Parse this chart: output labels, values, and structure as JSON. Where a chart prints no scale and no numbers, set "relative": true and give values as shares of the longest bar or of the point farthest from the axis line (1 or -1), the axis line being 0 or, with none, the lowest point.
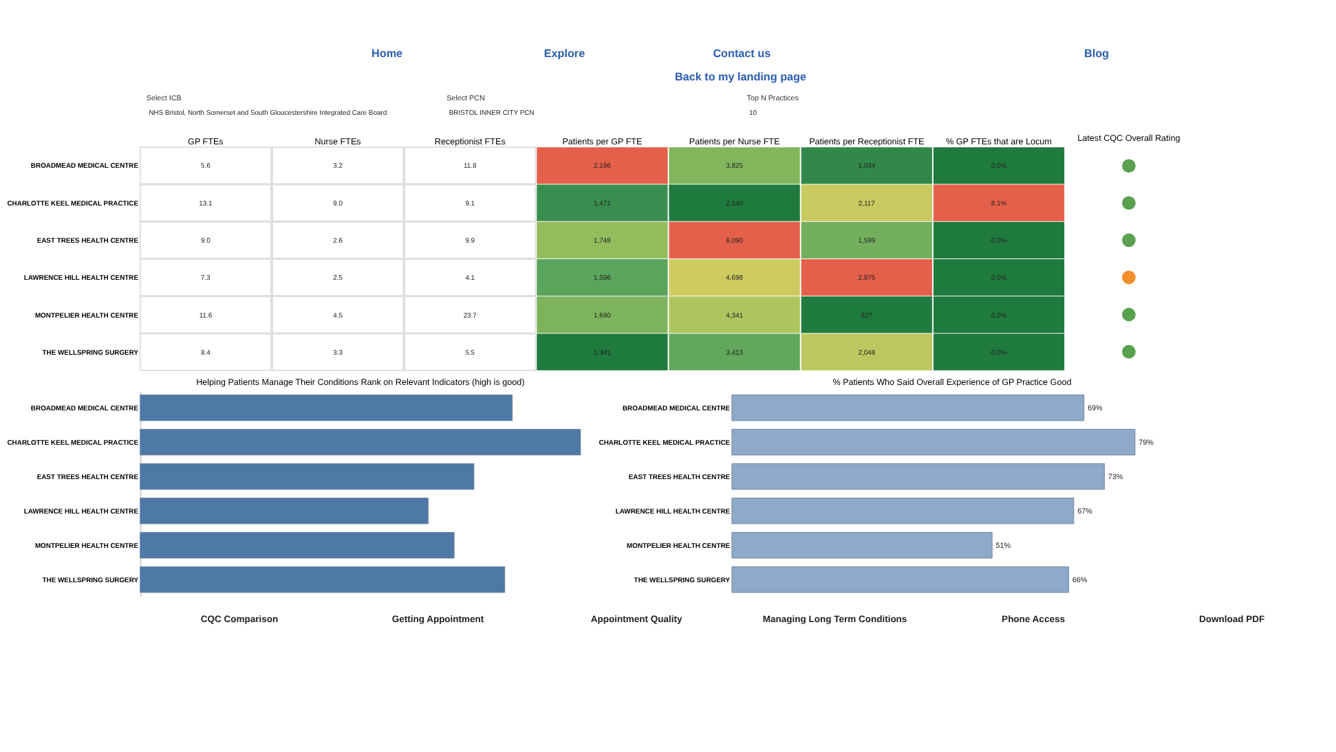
{
  "chart_data": [
    {
      "type": "other",
      "annotations": [
        "Home",
        "Explore",
        "Contact us",
        "Blog",
        "Back to my landing page",
        "Select ICB",
        "NHS Bristol, North Somerset and South Gloucestershire Integrated Care Board",
        "Select PCN",
        "BRISTOL INNER CITY PCN",
        "Top N Practices",
        "10"
      ]
    },
    {
      "type": "heatmap",
      "categories": [
        "GP FTEs",
        "Nurse FTEs",
        "Receptionist FTEs",
        "Patients per GP FTE",
        "Patients per Nurse FTE",
        "Patients per Receptionist FTE",
        "% GP FTEs that are Locum"
      ],
      "y_categories": [
        "BROADMEAD MEDICAL CENTRE",
        "CHARLOTTE KEEL MEDICAL PRACTICE",
        "EAST TREES HEALTH CENTRE",
        "LAWRENCE HILL HEALTH CENTRE",
        "MONTPELIER HEALTH CENTRE",
        "THE WELLSPRING SURGERY"
      ],
      "cells": [
        [
          5.6,
          3.2,
          11.8,
          2196,
          3825,
          1034,
          0.0
        ],
        [
          13.1,
          9.0,
          9.1,
          1471,
          2140,
          2117,
          8.1
        ],
        [
          9.0,
          2.6,
          9.9,
          1748,
          6090,
          1599,
          0.0
        ],
        [
          7.3,
          2.5,
          4.1,
          1596,
          4698,
          2875,
          0.0
        ],
        [
          11.6,
          4.5,
          23.7,
          1690,
          4341,
          827,
          0.0
        ],
        [
          8.4,
          3.3,
          5.5,
          1341,
          3413,
          2048,
          0.0
        ]
      ],
      "cell_labels": [
        [
          "5.6",
          "3.2",
          "11.8",
          "2,196",
          "3,825",
          "1,034",
          "0.0%"
        ],
        [
          "13.1",
          "9.0",
          "9.1",
          "1,471",
          "2,140",
          "2,117",
          "8.1%"
        ],
        [
          "9.0",
          "2.6",
          "9.9",
          "1,748",
          "6,090",
          "1,599",
          "0.0%"
        ],
        [
          "7.3",
          "2.5",
          "4.1",
          "1,596",
          "4,698",
          "2,875",
          "0.0%"
        ],
        [
          "11.6",
          "4.5",
          "23.7",
          "1,690",
          "4,341",
          "827",
          "0.0%"
        ],
        [
          "8.4",
          "3.3",
          "5.5",
          "1,341",
          "3,413",
          "2,048",
          "0.0%"
        ]
      ]
    },
    {
      "type": "other",
      "title": "Latest CQC Overall Rating",
      "colors": [
        "#59a14f",
        "#59a14f",
        "#59a14f",
        "#f28e2b",
        "#59a14f",
        "#59a14f"
      ]
    },
    {
      "type": "bar",
      "orientation": "horizontal",
      "relative": true,
      "title": "Helping Patients Manage Their Conditions Rank on Relevant Indicators (high is good)",
      "categories": [
        "BROADMEAD MEDICAL CENTRE",
        "CHARLOTTE KEEL MEDICAL PRACTICE",
        "EAST TREES HEALTH CENTRE",
        "LAWRENCE HILL HEALTH CENTRE",
        "MONTPELIER HEALTH CENTRE",
        "THE WELLSPRING SURGERY"
      ],
      "values": [
        0.845,
        1,
        0.758,
        0.654,
        0.713,
        0.828
      ],
      "color": "#4e79a7"
    },
    {
      "type": "bar",
      "orientation": "horizontal",
      "title": "% Patients Who Said Overall Experience of GP Practice Good",
      "categories": [
        "BROADMEAD MEDICAL CENTRE",
        "CHARLOTTE KEEL MEDICAL PRACTICE",
        "EAST TREES HEALTH CENTRE",
        "LAWRENCE HILL HEALTH CENTRE",
        "MONTPELIER HEALTH CENTRE",
        "THE WELLSPRING SURGERY"
      ],
      "values": [
        69,
        79,
        73,
        67,
        51,
        66
      ],
      "value_labels": [
        "69%",
        "79%",
        "73%",
        "67%",
        "51%",
        "66%"
      ],
      "color": "#8fa9c8"
    },
    {
      "type": "other",
      "annotations": [
        "CQC Comparison",
        "Getting Appointment",
        "Appointment Quality",
        "Managing Long Term Conditions",
        "Phone Access",
        "Download PDF"
      ]
    }
  ]
}
